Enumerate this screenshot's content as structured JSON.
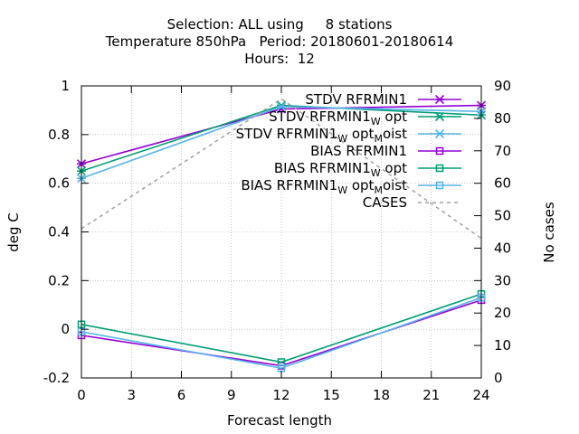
{
  "chart_data": {
    "type": "line",
    "title_lines": [
      "Selection: ALL using     8 stations",
      "Temperature 850hPa   Period: 20180601-20180614",
      "Hours:  12"
    ],
    "xlabel": "Forecast length",
    "ylabel": "deg C",
    "y2label": "No cases",
    "x": [
      0,
      12,
      24
    ],
    "xticks": [
      "0",
      "3",
      "6",
      "9",
      "12",
      "15",
      "18",
      "21",
      "24"
    ],
    "xlim": [
      0,
      24
    ],
    "yticks": [
      "-0.2",
      "0",
      "0.2",
      "0.4",
      "0.6",
      "0.8",
      "1"
    ],
    "ylim": [
      -0.2,
      1.0
    ],
    "y2ticks": [
      "0",
      "10",
      "20",
      "30",
      "40",
      "50",
      "60",
      "70",
      "80",
      "90"
    ],
    "y2lim": [
      0,
      90
    ],
    "grid": true,
    "legend_position": "top-right",
    "series": [
      {
        "name": "STDV RFRMIN1",
        "name_main": "STDV RFRMIN1",
        "sub1": "",
        "mid": "",
        "sub2": "",
        "tail": "",
        "color": "#9400d3",
        "marker": "star",
        "dashed": false,
        "axis": "left",
        "values": [
          0.68,
          0.905,
          0.92
        ]
      },
      {
        "name": "STDV RFRMIN1 W opt",
        "name_main": "STDV RFRMIN1",
        "sub1": "W",
        "mid": "opt",
        "sub2": "",
        "tail": "",
        "color": "#009e73",
        "marker": "star",
        "dashed": false,
        "axis": "left",
        "values": [
          0.65,
          0.92,
          0.88
        ]
      },
      {
        "name": "STDV RFRMIN1 W opt M oist",
        "name_main": "STDV RFRMIN1",
        "sub1": "W",
        "mid": "opt",
        "sub2": "M",
        "tail": "oist",
        "color": "#56b4e9",
        "marker": "star",
        "dashed": false,
        "axis": "left",
        "values": [
          0.62,
          0.915,
          0.895
        ]
      },
      {
        "name": "BIAS RFRMIN1",
        "name_main": "BIAS RFRMIN1",
        "sub1": "",
        "mid": "",
        "sub2": "",
        "tail": "",
        "color": "#9400d3",
        "marker": "square",
        "dashed": false,
        "axis": "left",
        "values": [
          -0.025,
          -0.15,
          0.12
        ]
      },
      {
        "name": "BIAS RFRMIN1 W opt",
        "name_main": "BIAS RFRMIN1",
        "sub1": "W",
        "mid": "opt",
        "sub2": "",
        "tail": "",
        "color": "#009e73",
        "marker": "square",
        "dashed": false,
        "axis": "left",
        "values": [
          0.02,
          -0.135,
          0.145
        ]
      },
      {
        "name": "BIAS RFRMIN1 W opt M oist",
        "name_main": "BIAS RFRMIN1",
        "sub1": "W",
        "mid": "opt",
        "sub2": "M",
        "tail": "oist",
        "color": "#56b4e9",
        "marker": "square",
        "dashed": false,
        "axis": "left",
        "values": [
          -0.01,
          -0.16,
          0.13
        ]
      },
      {
        "name": "CASES",
        "name_main": "CASES",
        "sub1": "",
        "mid": "",
        "sub2": "",
        "tail": "",
        "color": "#a0a0a0",
        "marker": "none",
        "dashed": true,
        "axis": "right",
        "values": [
          46,
          86,
          43
        ]
      }
    ]
  }
}
